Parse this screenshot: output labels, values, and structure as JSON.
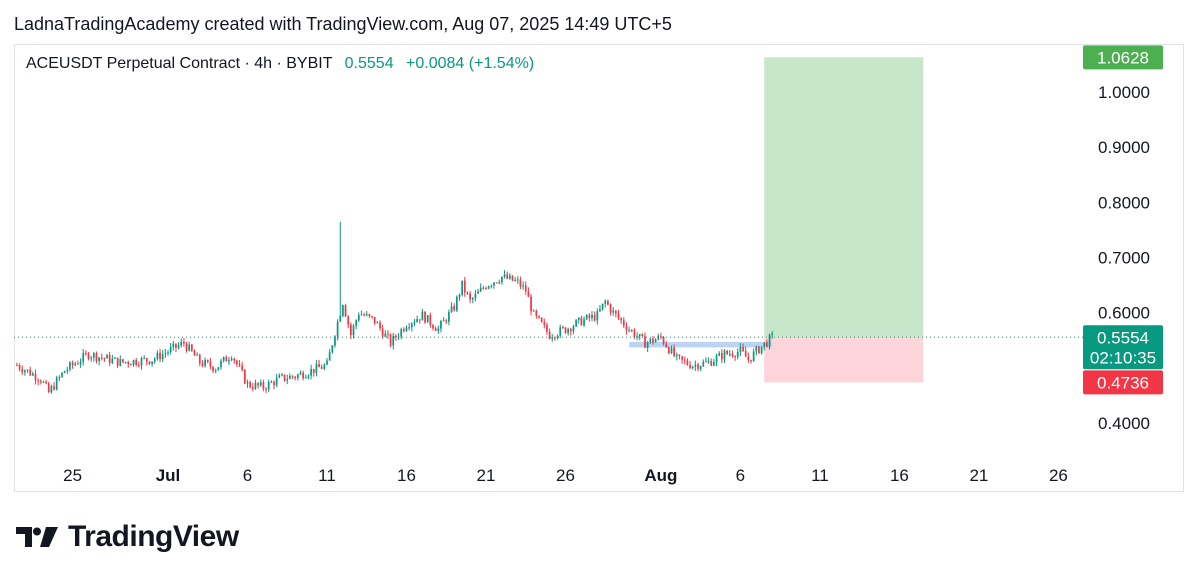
{
  "header": {
    "attribution": "LadnaTradingAcademy created with TradingView.com, Aug 07, 2025 14:49 UTC+5"
  },
  "legend": {
    "symbol": "ACEUSDT Perpetual Contract · 4h · BYBIT",
    "price": "0.5554",
    "change": "+0.0084 (+1.54%)"
  },
  "brand": {
    "name": "TradingView"
  },
  "colors": {
    "up": "#089981",
    "down": "#f23645",
    "profit_zone": "#c8e6c9",
    "loss_zone": "#fcd4d9",
    "entry_zone": "#bbd4f5",
    "target_label": "#4caf50",
    "stop_label": "#f23645",
    "price_label": "#089981"
  },
  "chart_data": {
    "type": "candlestick",
    "timeframe": "4h",
    "title": "ACEUSDT Perpetual Contract",
    "ylim": [
      0.36,
      1.1
    ],
    "y_ticks": [
      "1.0000",
      "0.9000",
      "0.8000",
      "0.7000",
      "0.6000",
      "0.4000"
    ],
    "x_ticks": [
      "25",
      "Jul",
      "6",
      "11",
      "16",
      "21",
      "26",
      "Aug",
      "6",
      "11",
      "16",
      "21",
      "26"
    ],
    "x_tick_days": [
      -6,
      0,
      5,
      10,
      15,
      20,
      25,
      31,
      36,
      41,
      46,
      51,
      56
    ],
    "price_path": [
      [
        -9.5,
        0.505
      ],
      [
        -8,
        0.48
      ],
      [
        -7.5,
        0.455
      ],
      [
        -6.5,
        0.495
      ],
      [
        -5,
        0.525
      ],
      [
        -3,
        0.51
      ],
      [
        -1,
        0.515
      ],
      [
        0,
        0.53
      ],
      [
        1,
        0.545
      ],
      [
        2,
        0.51
      ],
      [
        3,
        0.5
      ],
      [
        4,
        0.525
      ],
      [
        5,
        0.47
      ],
      [
        6,
        0.465
      ],
      [
        7,
        0.48
      ],
      [
        8,
        0.485
      ],
      [
        9,
        0.495
      ],
      [
        10,
        0.505
      ],
      [
        10.5,
        0.565
      ],
      [
        11,
        0.62
      ],
      [
        11.5,
        0.56
      ],
      [
        12,
        0.6
      ],
      [
        13,
        0.585
      ],
      [
        14,
        0.545
      ],
      [
        15,
        0.58
      ],
      [
        16,
        0.595
      ],
      [
        17,
        0.57
      ],
      [
        18,
        0.61
      ],
      [
        18.5,
        0.65
      ],
      [
        19,
        0.62
      ],
      [
        20,
        0.65
      ],
      [
        21,
        0.665
      ],
      [
        22,
        0.655
      ],
      [
        22.5,
        0.64
      ],
      [
        23,
        0.595
      ],
      [
        24,
        0.56
      ],
      [
        25,
        0.57
      ],
      [
        26,
        0.585
      ],
      [
        27,
        0.595
      ],
      [
        27.5,
        0.62
      ],
      [
        28,
        0.6
      ],
      [
        29,
        0.57
      ],
      [
        30,
        0.545
      ],
      [
        31,
        0.555
      ],
      [
        32,
        0.515
      ],
      [
        33,
        0.505
      ],
      [
        34,
        0.51
      ],
      [
        35,
        0.525
      ],
      [
        36,
        0.53
      ],
      [
        36.5,
        0.515
      ],
      [
        37,
        0.53
      ],
      [
        38,
        0.555
      ]
    ],
    "spike": {
      "day": 10.8,
      "high": 0.765
    },
    "last_price": {
      "value": 0.5554,
      "label": "0.5554",
      "countdown": "02:10:35"
    },
    "position": {
      "start_day": 37.5,
      "end_day": 47.5,
      "entry": 0.5554,
      "target": 1.0628,
      "target_label": "1.0628",
      "stop": 0.4736,
      "stop_label": "0.4736"
    },
    "entry_zone": {
      "start_day": 29,
      "end_day": 38,
      "top": 0.547,
      "bottom": 0.537
    }
  }
}
